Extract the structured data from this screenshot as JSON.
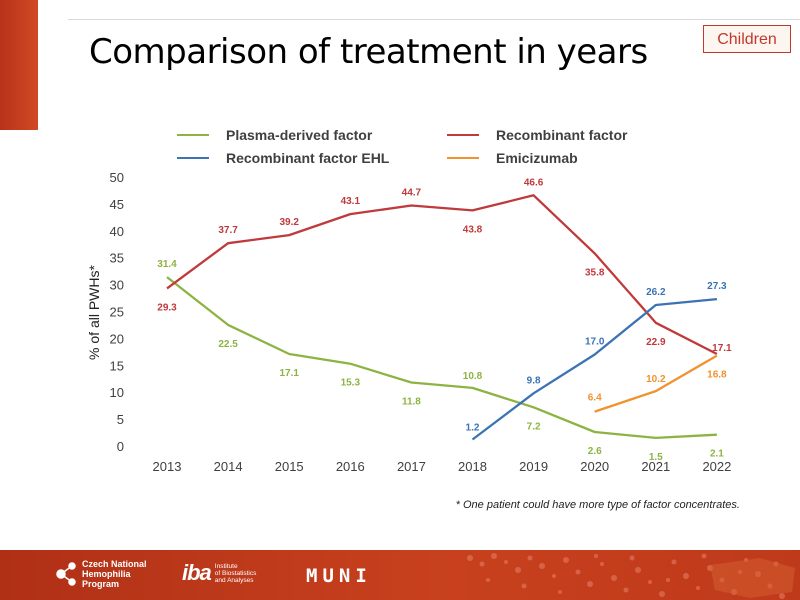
{
  "slide": {
    "title": "Comparison of treatment in years",
    "badge": "Children",
    "note": "* One patient could have more type of factor concentrates."
  },
  "footer": {
    "cnhp_lines": [
      "Czech National",
      "Hemophilia",
      "Program"
    ],
    "iba_mark": "iba",
    "iba_lines": [
      "Institute",
      "of Biostatistics",
      "and Analyses"
    ],
    "muni": "MUNI"
  },
  "chart_data": {
    "type": "line",
    "title": "",
    "ylabel": "% of all PWHs*",
    "xlabel": "",
    "x": [
      "2013",
      "2014",
      "2015",
      "2016",
      "2017",
      "2018",
      "2019",
      "2020",
      "2021",
      "2022"
    ],
    "ylim": [
      0,
      50
    ],
    "yticks": [
      0,
      5,
      10,
      15,
      20,
      25,
      30,
      35,
      40,
      45,
      50
    ],
    "grid": false,
    "legend_position": "top",
    "series": [
      {
        "name": "Plasma-derived factor",
        "color": "#8db342",
        "values": [
          31.4,
          22.5,
          17.1,
          15.3,
          11.8,
          10.8,
          7.2,
          2.6,
          1.5,
          2.1
        ],
        "labels": [
          "31.4",
          "22.5",
          "17.1",
          "15.3",
          "11.8",
          "10.8",
          "7.2",
          "2.6",
          "1.5",
          "2.1"
        ]
      },
      {
        "name": "Recombinant factor",
        "color": "#c0393b",
        "values": [
          29.3,
          37.7,
          39.2,
          43.1,
          44.7,
          43.8,
          46.6,
          35.8,
          22.9,
          17.1
        ],
        "labels": [
          "29.3",
          "37.7",
          "39.2",
          "43.1",
          "44.7",
          "43.8",
          "46.6",
          "35.8",
          "22.9",
          "17.1"
        ]
      },
      {
        "name": "Recombinant factor EHL",
        "color": "#3b73b3",
        "values": [
          null,
          null,
          null,
          null,
          null,
          1.2,
          9.8,
          17.0,
          26.2,
          27.3
        ],
        "labels": [
          null,
          null,
          null,
          null,
          null,
          "1.2",
          "9.8",
          "17.0",
          "26.2",
          "27.3"
        ]
      },
      {
        "name": "Emicizumab",
        "color": "#f0922e",
        "values": [
          null,
          null,
          null,
          null,
          null,
          null,
          null,
          6.4,
          10.2,
          16.8
        ],
        "labels": [
          null,
          null,
          null,
          null,
          null,
          null,
          null,
          "6.4",
          "10.2",
          "16.8"
        ]
      }
    ]
  }
}
